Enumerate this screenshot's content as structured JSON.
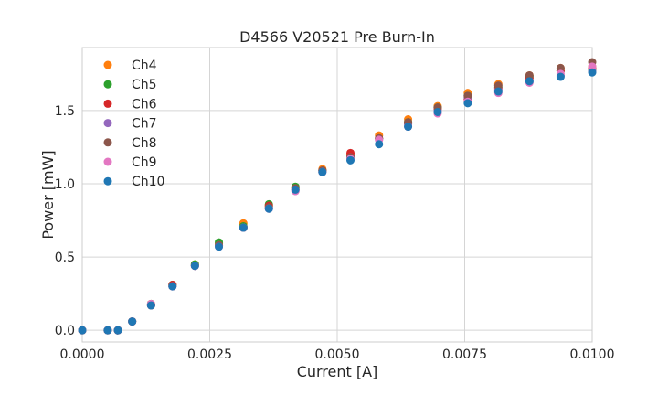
{
  "chart_data": {
    "type": "scatter",
    "title": "D4566 V20521 Pre Burn-In",
    "xlabel": "Current [A]",
    "ylabel": "Power [mW]",
    "xlim": [
      0.0,
      0.01
    ],
    "ylim": [
      -0.08,
      1.93
    ],
    "xticks": [
      "0.0000",
      "0.0025",
      "0.0050",
      "0.0075",
      "0.0100"
    ],
    "yticks": [
      "0.0",
      "0.5",
      "1.0",
      "1.5"
    ],
    "grid": true,
    "legend_position": "top-left",
    "x": [
      0.0,
      0.0005,
      0.0007,
      0.00098,
      0.00135,
      0.00177,
      0.00221,
      0.00268,
      0.00316,
      0.00366,
      0.00418,
      0.00471,
      0.00526,
      0.00582,
      0.00639,
      0.00697,
      0.00756,
      0.00816,
      0.00877,
      0.00938,
      0.01
    ],
    "series": [
      {
        "name": "Ch4",
        "color": "#ff7f0e",
        "values": [
          0.0,
          0.0,
          0.0,
          0.06,
          0.18,
          0.31,
          0.45,
          0.59,
          0.73,
          0.85,
          0.97,
          1.1,
          1.2,
          1.33,
          1.44,
          1.53,
          1.62,
          1.68,
          1.74,
          1.79,
          1.8
        ]
      },
      {
        "name": "Ch5",
        "color": "#2ca02c",
        "values": [
          0.0,
          0.0,
          0.0,
          0.06,
          0.18,
          0.31,
          0.45,
          0.6,
          0.71,
          0.86,
          0.98,
          1.09,
          1.19,
          1.31,
          1.42,
          1.52,
          1.6,
          1.66,
          1.73,
          1.77,
          1.78
        ]
      },
      {
        "name": "Ch6",
        "color": "#d62728",
        "values": [
          0.0,
          0.0,
          0.0,
          0.06,
          0.17,
          0.31,
          0.44,
          0.58,
          0.7,
          0.85,
          0.96,
          1.09,
          1.21,
          1.31,
          1.41,
          1.51,
          1.58,
          1.65,
          1.72,
          1.77,
          1.79
        ]
      },
      {
        "name": "Ch7",
        "color": "#9467bd",
        "values": [
          0.0,
          0.0,
          0.0,
          0.06,
          0.17,
          0.3,
          0.44,
          0.58,
          0.7,
          0.83,
          0.95,
          1.08,
          1.18,
          1.3,
          1.41,
          1.5,
          1.59,
          1.64,
          1.7,
          1.74,
          1.77
        ]
      },
      {
        "name": "Ch8",
        "color": "#8c564b",
        "values": [
          0.0,
          0.0,
          0.0,
          0.06,
          0.17,
          0.3,
          0.44,
          0.58,
          0.7,
          0.84,
          0.97,
          1.09,
          1.18,
          1.31,
          1.42,
          1.52,
          1.6,
          1.67,
          1.74,
          1.79,
          1.83
        ]
      },
      {
        "name": "Ch9",
        "color": "#e377c2",
        "values": [
          0.0,
          0.0,
          0.0,
          0.06,
          0.18,
          0.3,
          0.44,
          0.57,
          0.7,
          0.83,
          0.95,
          1.08,
          1.17,
          1.3,
          1.39,
          1.48,
          1.56,
          1.62,
          1.69,
          1.75,
          1.8
        ]
      },
      {
        "name": "Ch10",
        "color": "#1f77b4",
        "values": [
          0.0,
          0.0,
          0.0,
          0.06,
          0.17,
          0.3,
          0.44,
          0.57,
          0.7,
          0.83,
          0.96,
          1.08,
          1.16,
          1.27,
          1.39,
          1.49,
          1.55,
          1.63,
          1.7,
          1.73,
          1.76
        ]
      }
    ]
  }
}
